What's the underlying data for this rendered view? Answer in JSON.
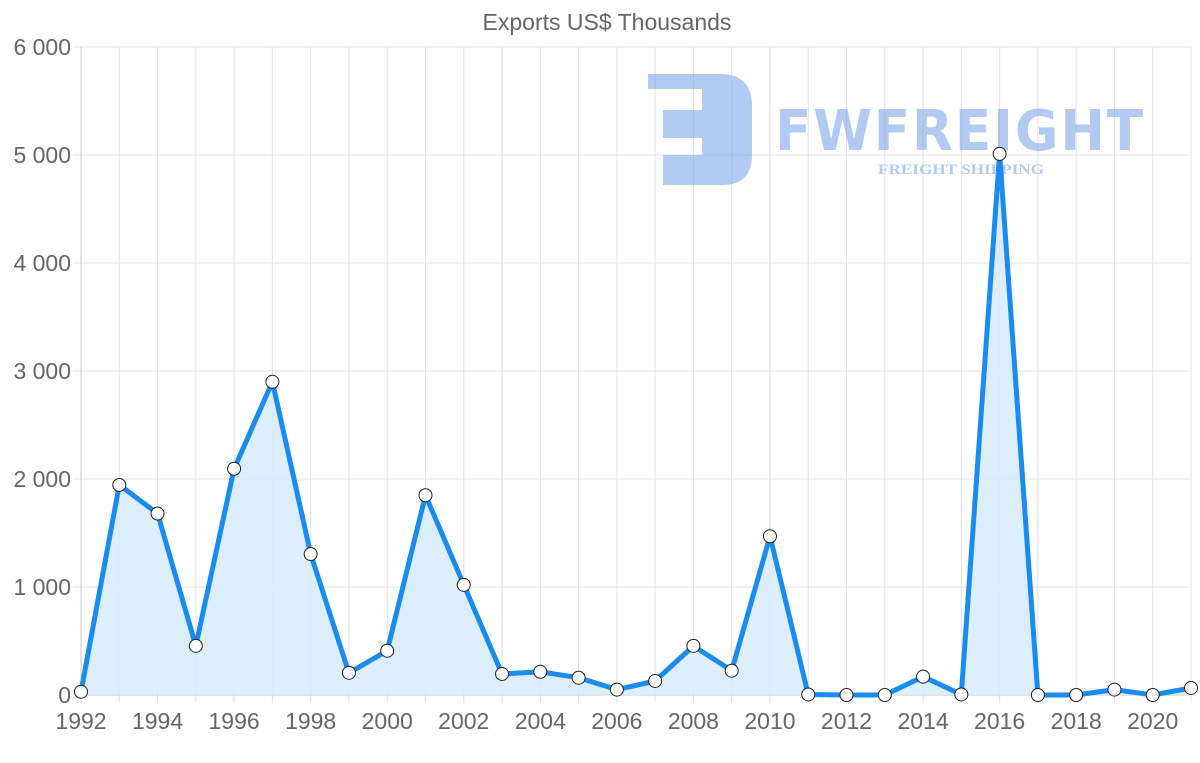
{
  "chart_data": {
    "type": "area",
    "title": "Exports US$ Thousands",
    "xlabel": "",
    "ylabel": "",
    "x": [
      1992,
      1993,
      1994,
      1995,
      1996,
      1997,
      1998,
      1999,
      2000,
      2001,
      2002,
      2003,
      2004,
      2005,
      2006,
      2007,
      2008,
      2009,
      2010,
      2011,
      2012,
      2013,
      2014,
      2015,
      2016,
      2017,
      2018,
      2019,
      2020,
      2021
    ],
    "series": [
      {
        "name": "Exports US$ Thousands",
        "values": [
          30,
          1945,
          1680,
          455,
          2095,
          2900,
          1305,
          205,
          410,
          1850,
          1020,
          195,
          215,
          160,
          50,
          130,
          455,
          225,
          1470,
          5,
          0,
          0,
          170,
          5,
          5010,
          0,
          0,
          50,
          0,
          65
        ],
        "line_color": "#1a8cf0",
        "fill_color": "#d8ebfc"
      }
    ],
    "ylim": [
      0,
      6000
    ],
    "yticks": [
      0,
      1000,
      2000,
      3000,
      4000,
      5000,
      6000
    ],
    "ytick_labels": [
      "0",
      "1 000",
      "2 000",
      "3 000",
      "4 000",
      "5 000",
      "6 000"
    ],
    "xtick_labels": [
      "1992",
      "1994",
      "1996",
      "1998",
      "2000",
      "2002",
      "2004",
      "2006",
      "2008",
      "2010",
      "2012",
      "2014",
      "2016",
      "2018",
      "2020"
    ],
    "grid": true,
    "legend": "none"
  },
  "watermark": {
    "brand": "FWFREIGHT",
    "tagline": "FREIGHT SHIPPING",
    "color": "#7fa8ea"
  }
}
